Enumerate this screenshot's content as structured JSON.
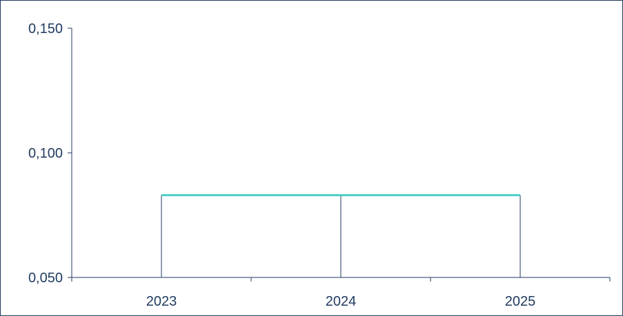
{
  "chart_data": {
    "type": "line",
    "categories": [
      "2023",
      "2024",
      "2025"
    ],
    "series": [
      {
        "values": [
          0.083,
          0.083,
          0.083
        ],
        "color": "#4dd0c8"
      }
    ],
    "ylim": [
      0.05,
      0.15
    ],
    "yticks": [
      0.05,
      0.1,
      0.15
    ],
    "ytick_labels": [
      "0,050",
      "0,100",
      "0,150"
    ],
    "drop_lines": true,
    "grid": false,
    "axis_color": "#1f3a5f",
    "text_color": "#1f3a5f"
  }
}
